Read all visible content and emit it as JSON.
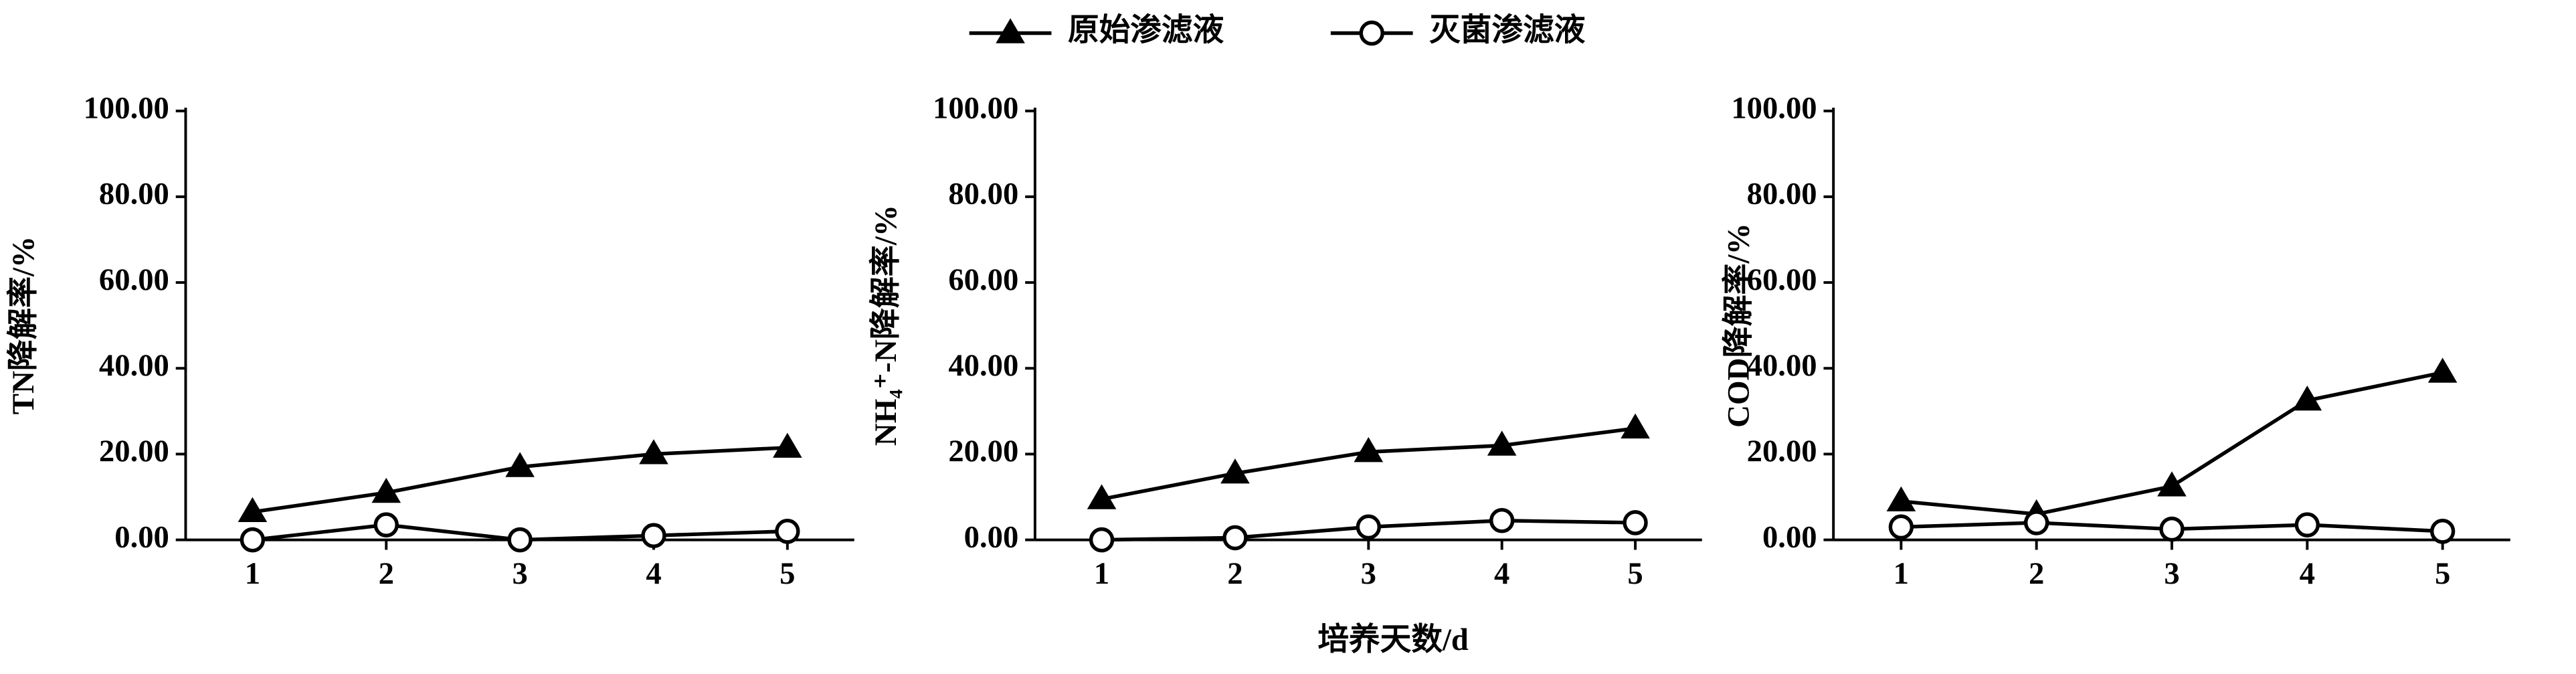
{
  "chart_data": [
    {
      "type": "line",
      "ylabel": "TN降解率/%",
      "x": [
        1,
        2,
        3,
        4,
        5
      ],
      "xlim": [
        0.5,
        5.5
      ],
      "xticks": [
        1,
        2,
        3,
        4,
        5
      ],
      "ylim": [
        0,
        100
      ],
      "yticks": [
        {
          "value": 0,
          "label": "0.00"
        },
        {
          "value": 20,
          "label": "20.00"
        },
        {
          "value": 40,
          "label": "40.00"
        },
        {
          "value": 60,
          "label": "60.00"
        },
        {
          "value": 80,
          "label": "80.00"
        },
        {
          "value": 100,
          "label": "100.00"
        }
      ],
      "series": [
        {
          "name": "原始渗滤液",
          "color": "#000000",
          "marker": "triangle",
          "values": [
            6.5,
            11,
            17,
            20,
            21.5
          ]
        },
        {
          "name": "灭菌渗滤液",
          "color": "#000000",
          "marker": "circle",
          "values": [
            0,
            3.5,
            0,
            1,
            2
          ]
        }
      ]
    },
    {
      "type": "line",
      "ylabel": "NH₄⁺-N降解率/%",
      "xlabel": "培养天数/d",
      "x": [
        1,
        2,
        3,
        4,
        5
      ],
      "xlim": [
        0.5,
        5.5
      ],
      "xticks": [
        1,
        2,
        3,
        4,
        5
      ],
      "ylim": [
        0,
        100
      ],
      "yticks": [
        {
          "value": 0,
          "label": "0.00"
        },
        {
          "value": 20,
          "label": "20.00"
        },
        {
          "value": 40,
          "label": "40.00"
        },
        {
          "value": 60,
          "label": "60.00"
        },
        {
          "value": 80,
          "label": "80.00"
        },
        {
          "value": 100,
          "label": "100.00"
        }
      ],
      "series": [
        {
          "color": "#000000",
          "marker": "triangle",
          "values": [
            9.5,
            15.5,
            20.5,
            22,
            26
          ]
        },
        {
          "color": "#000000",
          "marker": "circle",
          "values": [
            0,
            0.5,
            3,
            4.5,
            4
          ]
        }
      ]
    },
    {
      "type": "line",
      "ylabel": "COD降解率/%",
      "x": [
        1,
        2,
        3,
        4,
        5
      ],
      "xlim": [
        0.5,
        5.5
      ],
      "xticks": [
        1,
        2,
        3,
        4,
        5
      ],
      "ylim": [
        0,
        100
      ],
      "yticks": [
        {
          "value": 0,
          "label": "0.00"
        },
        {
          "value": 20,
          "label": "20.00"
        },
        {
          "value": 40,
          "label": "40.00"
        },
        {
          "value": 60,
          "label": "60.00"
        },
        {
          "value": 80,
          "label": "80.00"
        },
        {
          "value": 100,
          "label": "100.00"
        }
      ],
      "series": [
        {
          "color": "#000000",
          "marker": "triangle",
          "values": [
            9,
            6,
            12.5,
            32.5,
            39
          ]
        },
        {
          "color": "#000000",
          "marker": "circle",
          "values": [
            3,
            4,
            2.5,
            3.5,
            2
          ]
        }
      ]
    }
  ]
}
